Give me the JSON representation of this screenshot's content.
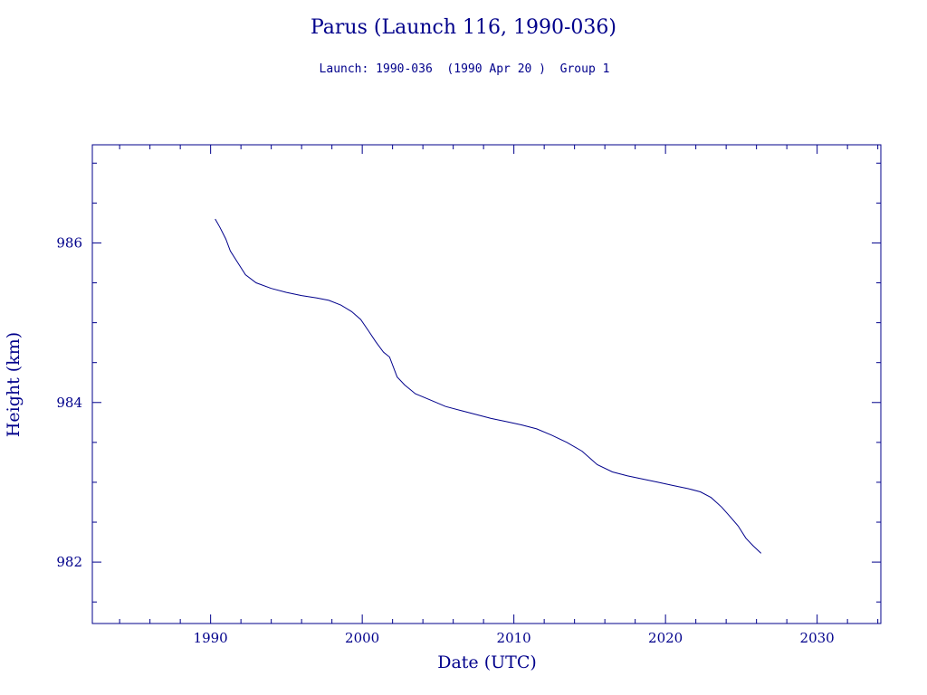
{
  "chart_data": {
    "type": "line",
    "title": "Parus (Launch 116, 1990-036)",
    "subtitle": "Launch: 1990-036  (1990 Apr 20 )  Group 1",
    "xlabel": "Date (UTC)",
    "ylabel": "Height (km)",
    "xlim": [
      1982.2,
      2034.2
    ],
    "ylim": [
      981.23,
      987.23
    ],
    "x_ticks": [
      1990,
      2000,
      2010,
      2020,
      2030
    ],
    "y_ticks": [
      982,
      984,
      986
    ],
    "grid": false,
    "line_color": "#00008b",
    "series": [
      {
        "x": [
          1990.3,
          1990.6,
          1991.0,
          1991.3,
          1991.8,
          1992.3,
          1993.0,
          1994.0,
          1995.0,
          1996.0,
          1997.0,
          1997.8,
          1998.6,
          1999.3,
          1999.9,
          2000.4,
          2000.9,
          2001.4,
          2001.8,
          2002.3,
          2002.8,
          2003.5,
          2004.5,
          2005.5,
          2006.5,
          2007.5,
          2008.5,
          2009.5,
          2010.5,
          2011.5,
          2012.5,
          2013.5,
          2014.5,
          2015.5,
          2016.5,
          2017.5,
          2018.5,
          2019.5,
          2020.5,
          2021.5,
          2022.3,
          2023.0,
          2023.7,
          2024.3,
          2024.8,
          2025.3,
          2025.8,
          2026.3
        ],
        "y": [
          986.3,
          986.2,
          986.05,
          985.9,
          985.75,
          985.6,
          985.5,
          985.43,
          985.38,
          985.34,
          985.31,
          985.28,
          985.22,
          985.14,
          985.04,
          984.9,
          984.76,
          984.63,
          984.57,
          984.32,
          984.22,
          984.11,
          984.03,
          983.95,
          983.9,
          983.85,
          983.8,
          983.76,
          983.72,
          983.67,
          983.59,
          983.5,
          983.39,
          983.22,
          983.13,
          983.08,
          983.04,
          983.0,
          982.96,
          982.92,
          982.88,
          982.81,
          982.69,
          982.56,
          982.45,
          982.3,
          982.2,
          982.11
        ]
      }
    ]
  }
}
